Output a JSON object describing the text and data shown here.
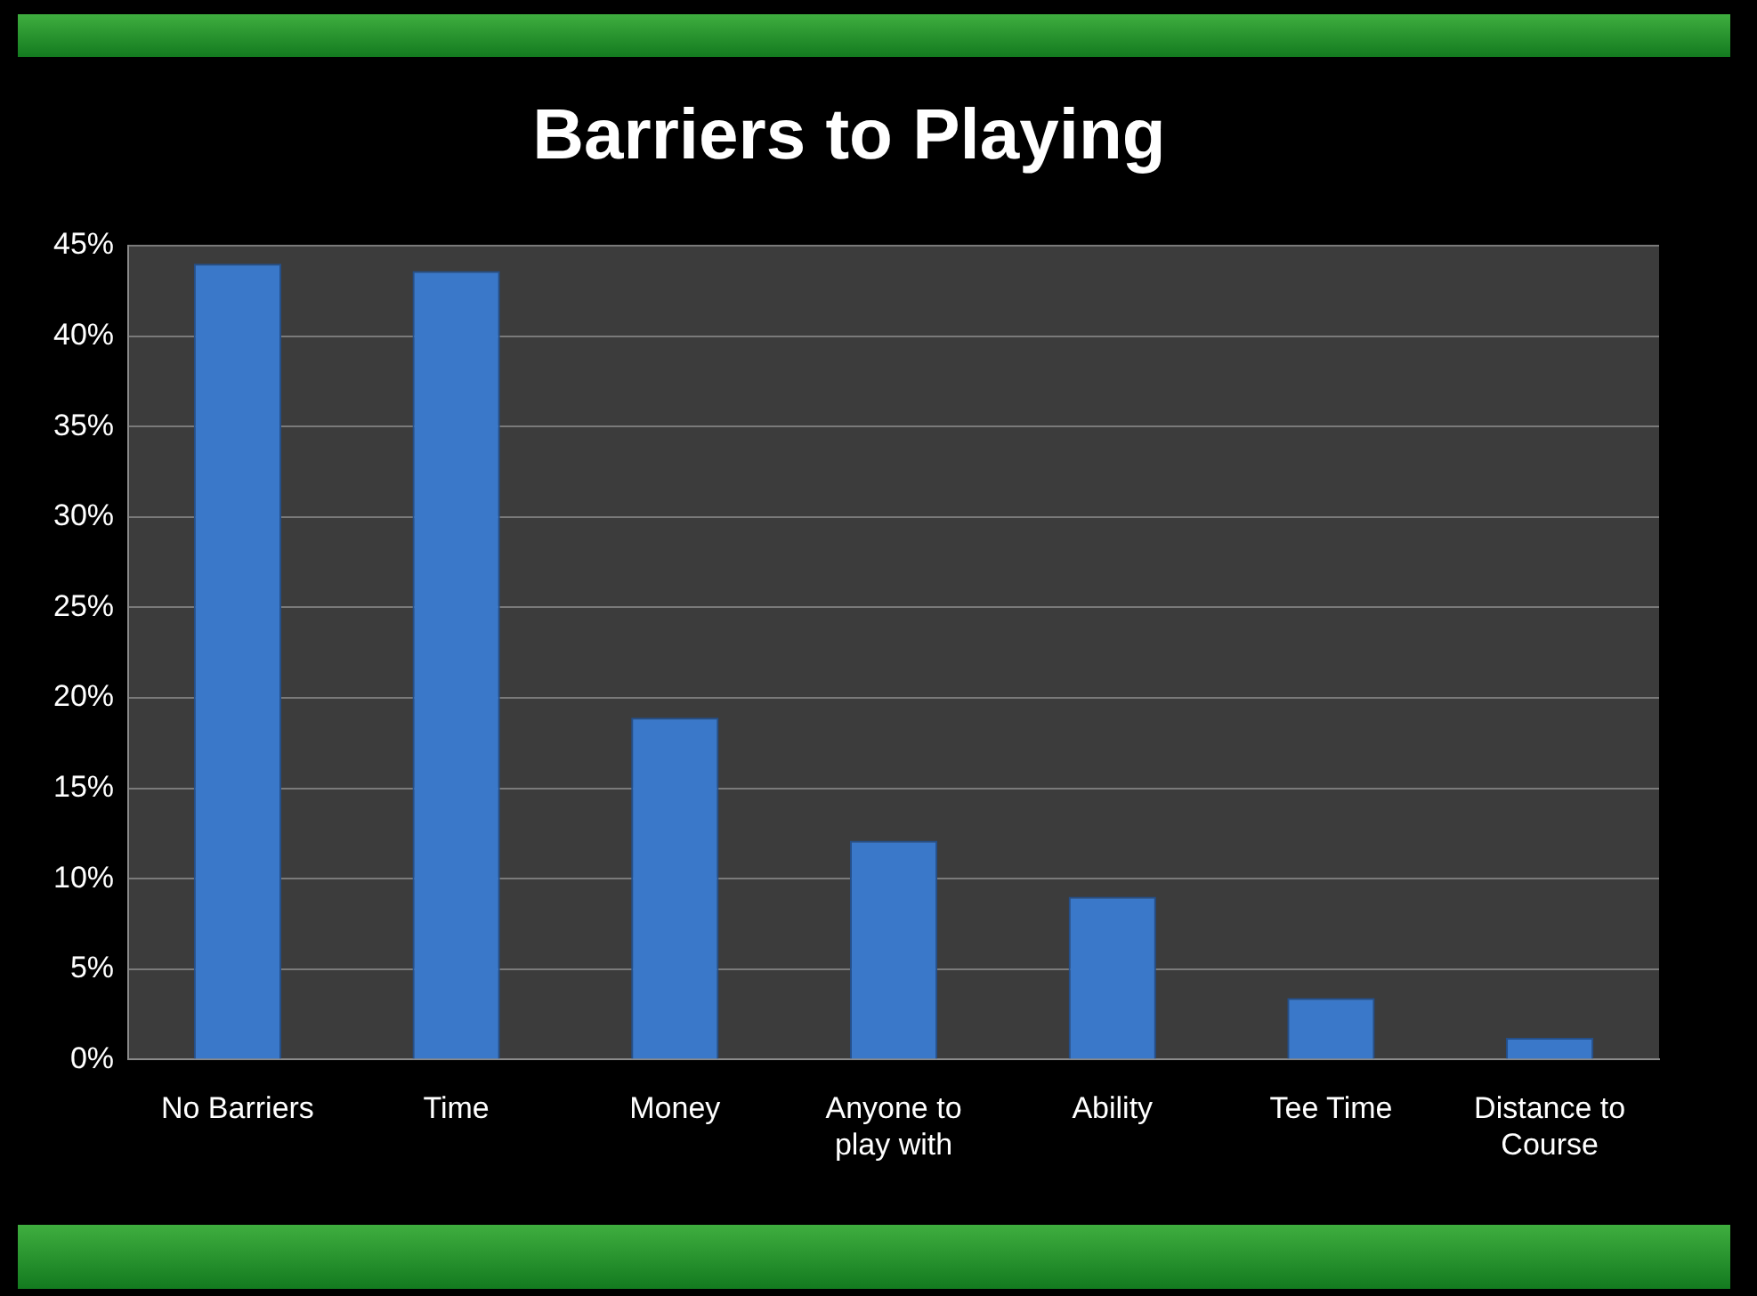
{
  "chart_data": {
    "type": "bar",
    "title": "Barriers to Playing",
    "categories": [
      "No Barriers",
      "Time",
      "Money",
      "Anyone to play with",
      "Ability",
      "Tee Time",
      "Distance to Course"
    ],
    "values": [
      44,
      43.6,
      18.9,
      12.1,
      9,
      3.4,
      1.2
    ],
    "color": "#3a78c9",
    "ylim": [
      0,
      45
    ],
    "yticks": [
      {
        "value": 0,
        "label": "0%"
      },
      {
        "value": 5,
        "label": "5%"
      },
      {
        "value": 10,
        "label": "10%"
      },
      {
        "value": 15,
        "label": "15%"
      },
      {
        "value": 20,
        "label": "20%"
      },
      {
        "value": 25,
        "label": "25%"
      },
      {
        "value": 30,
        "label": "30%"
      },
      {
        "value": 35,
        "label": "35%"
      },
      {
        "value": 40,
        "label": "40%"
      },
      {
        "value": 45,
        "label": "45%"
      }
    ],
    "grid": "y"
  }
}
